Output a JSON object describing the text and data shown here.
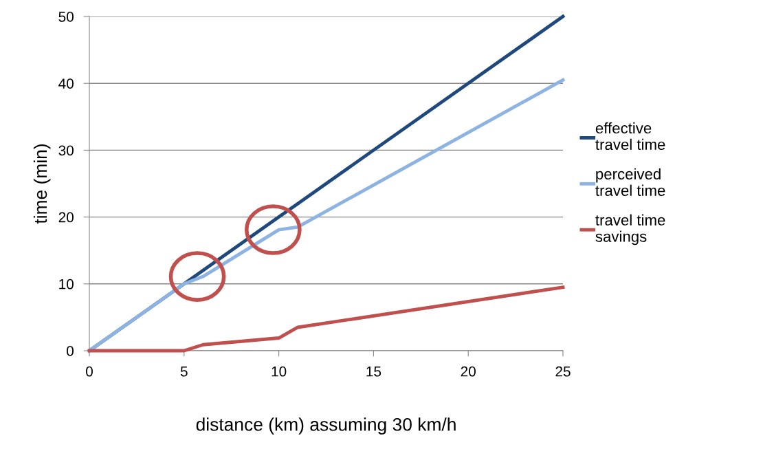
{
  "chart_data": {
    "type": "line",
    "xlabel": "distance (km) assuming 30 km/h",
    "ylabel": "time (min)",
    "x": [
      0,
      5,
      6,
      10,
      11,
      25
    ],
    "series": [
      {
        "name": "effective\ntravel time",
        "color": "#1f497d",
        "values": [
          0,
          10,
          12,
          20,
          22,
          50
        ]
      },
      {
        "name": "perceived\ntravel time",
        "color": "#8db3e2",
        "values": [
          0,
          10,
          11.1,
          18.1,
          18.5,
          40.5
        ]
      },
      {
        "name": "travel time\nsavings",
        "color": "#c0504d",
        "values": [
          0,
          0,
          0.9,
          1.9,
          3.5,
          9.5
        ]
      }
    ],
    "xlim": [
      0,
      25
    ],
    "xticks": [
      0,
      5,
      10,
      15,
      20,
      25
    ],
    "ylim": [
      0,
      50
    ],
    "yticks": [
      0,
      10,
      20,
      30,
      40,
      50
    ],
    "grid": "y",
    "legend": "right",
    "marker": "none",
    "line_style": "solid"
  }
}
